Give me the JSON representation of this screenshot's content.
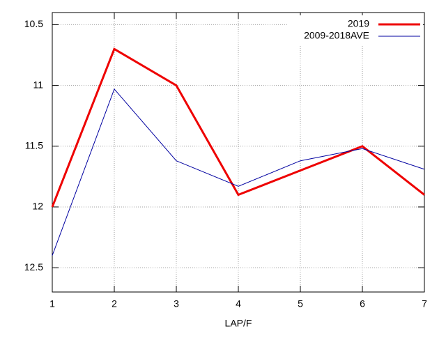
{
  "chart_data": {
    "type": "line",
    "xlabel": "LAP/F",
    "x": [
      1,
      2,
      3,
      4,
      5,
      6,
      7
    ],
    "series": [
      {
        "name": "2019",
        "color": "#ee0000",
        "width": 3,
        "values": [
          12.0,
          10.7,
          11.0,
          11.9,
          11.7,
          11.5,
          11.9
        ]
      },
      {
        "name": "2009-2018AVE",
        "color": "#0000a0",
        "width": 1,
        "values": [
          12.4,
          11.03,
          11.62,
          11.83,
          11.62,
          11.52,
          11.69
        ]
      }
    ],
    "xlim": [
      1,
      7
    ],
    "xticks": [
      1,
      2,
      3,
      4,
      5,
      6,
      7
    ],
    "ylim": [
      10.4,
      12.7
    ],
    "yticks": [
      10.5,
      11,
      11.5,
      12,
      12.5
    ],
    "y_reversed": true,
    "grid": true,
    "legend": "top-right"
  }
}
